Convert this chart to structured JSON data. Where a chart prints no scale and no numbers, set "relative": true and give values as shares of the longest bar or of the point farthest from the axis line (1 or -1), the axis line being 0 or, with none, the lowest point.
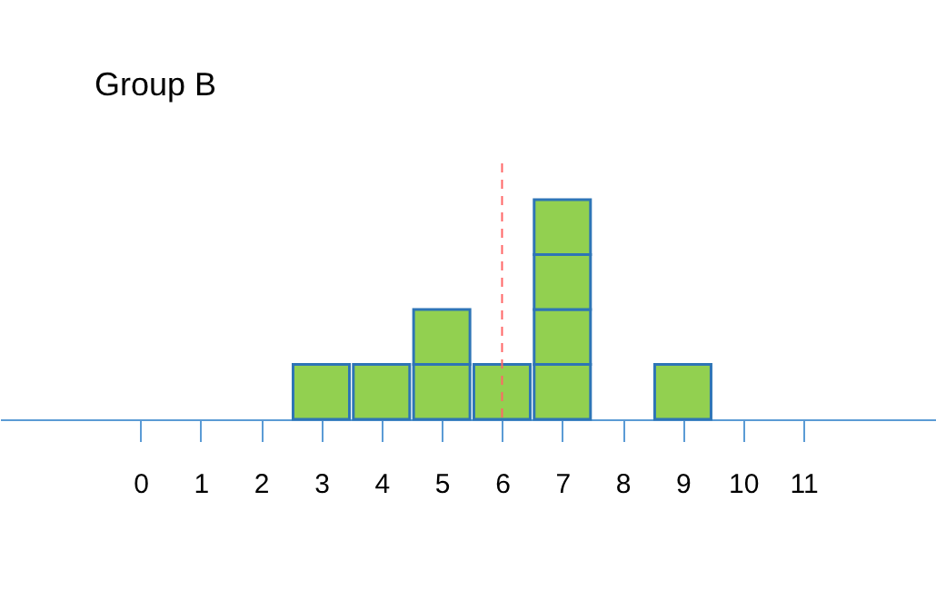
{
  "chart_data": {
    "type": "bar",
    "title": "Group B",
    "relative": true,
    "stacked": true,
    "grid": false,
    "x": [
      3,
      4,
      5,
      6,
      7,
      9
    ],
    "series": [
      {
        "color": "#92d050",
        "values": [
          0.25,
          0.25,
          0.25,
          0.25,
          0.25,
          0.25
        ]
      },
      {
        "color": "#92d050",
        "values": [
          null,
          null,
          0.25,
          null,
          0.25,
          null
        ]
      },
      {
        "color": "#92d050",
        "values": [
          null,
          null,
          null,
          null,
          0.25,
          null
        ]
      },
      {
        "color": "#92d050",
        "values": [
          null,
          null,
          null,
          null,
          0.25,
          null
        ]
      }
    ],
    "xlim": [
      -2.33,
      13.2
    ],
    "xticks": [
      0,
      1,
      2,
      3,
      4,
      5,
      6,
      7,
      8,
      9,
      10,
      11
    ],
    "ref_lines": [
      {
        "axis": "x",
        "value": 6,
        "color": "#ff6666",
        "line_style": "dashed"
      }
    ]
  }
}
